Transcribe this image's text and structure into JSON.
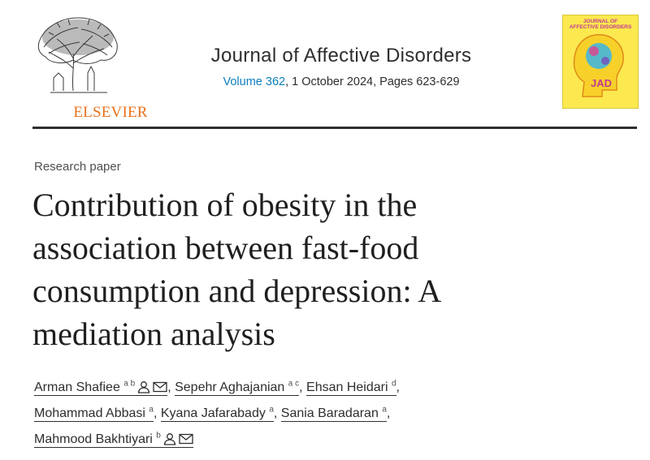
{
  "header": {
    "publisher": "ELSEVIER",
    "journal_title": "Journal of Affective Disorders",
    "volume": "Volume 362",
    "issue_details": ", 1 October 2024, Pages 623-629",
    "cover": {
      "title_lines": [
        "JOURNAL OF",
        "AFFECTIVE DISORDERS"
      ],
      "logo_text": "JAD"
    }
  },
  "article": {
    "type": "Research paper",
    "title_lines": [
      "Contribution of obesity in the",
      "association between fast-food",
      "consumption and depression: A",
      "mediation analysis"
    ]
  },
  "authors": [
    {
      "name": "Arman Shafiee",
      "affiliations": "a b",
      "icons": [
        "person-icon",
        "email-icon"
      ]
    },
    {
      "name": "Sepehr Aghajanian",
      "affiliations": "a c",
      "icons": []
    },
    {
      "name": "Ehsan Heidari",
      "affiliations": "d",
      "icons": []
    },
    {
      "name": "Mohammad Abbasi",
      "affiliations": "a",
      "icons": []
    },
    {
      "name": "Kyana Jafarabady",
      "affiliations": "a",
      "icons": []
    },
    {
      "name": "Sania Baradaran",
      "affiliations": "a",
      "icons": []
    },
    {
      "name": "Mahmood Bakhtiyari",
      "affiliations": "b",
      "icons": [
        "person-icon",
        "email-icon"
      ]
    }
  ],
  "colors": {
    "publisher_orange": "#e9711c",
    "link_blue": "#0c7dbb",
    "cover_yellow": "#fce94f"
  }
}
